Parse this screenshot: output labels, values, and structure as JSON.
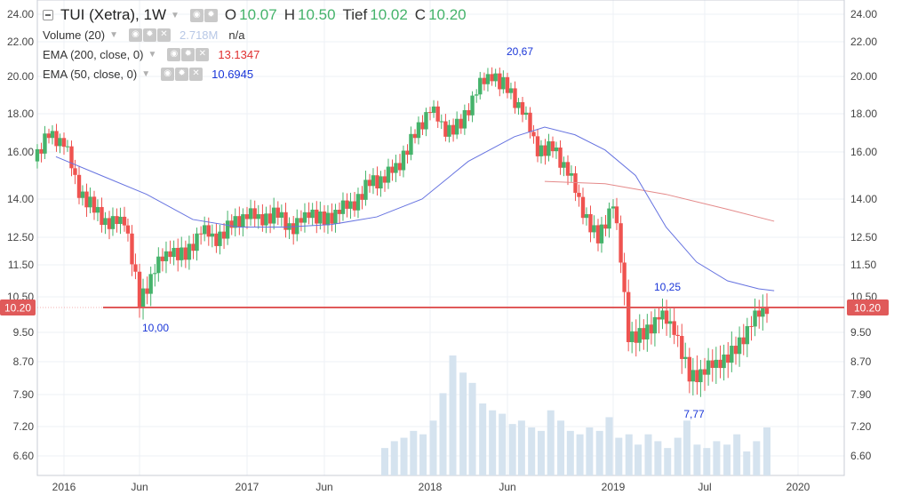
{
  "header": {
    "symbol": "TUI (Xetra), 1W",
    "open_label": "O",
    "open": "10.07",
    "high_label": "H",
    "high": "10.50",
    "low_label": "Tief",
    "low": "10.02",
    "close_label": "C",
    "close": "10.20"
  },
  "indicators": [
    {
      "label": "Volume (20)",
      "value": "2.718M",
      "extra": "n/a",
      "color": "#b8c8e6"
    },
    {
      "label": "EMA (200, close, 0)",
      "value": "13.1347",
      "color": "#e03131"
    },
    {
      "label": "EMA (50, close, 0)",
      "value": "10.6945",
      "color": "#1a36d8"
    }
  ],
  "legend_buttons": [
    "eye-icon",
    "gear-icon",
    "close-icon"
  ],
  "colors": {
    "up": "#45b36b",
    "down": "#ef5350",
    "hline": "#e05a5a",
    "ema50": "#6673e0",
    "ema200": "#e48a8a",
    "volume": "#d5e3ef",
    "annotation": "#1a36d8"
  },
  "chart_data": {
    "type": "candlestick",
    "interval": "1W",
    "y_ticks": [
      "24.00",
      "22.00",
      "20.00",
      "18.00",
      "16.00",
      "14.00",
      "12.50",
      "11.50",
      "10.50",
      "9.50",
      "8.70",
      "7.90",
      "7.20",
      "6.60"
    ],
    "x_ticks": [
      "2016",
      "Jun",
      "2017",
      "Jun",
      "2018",
      "Jun",
      "2019",
      "Jul",
      "2020"
    ],
    "price_label": "10.20",
    "horizontal_line": 10.2,
    "annotations": [
      {
        "text": "20,67",
        "value": 20.67,
        "date": "2018-04"
      },
      {
        "text": "10,00",
        "value": 10.0,
        "date": "2016-06"
      },
      {
        "text": "10,25",
        "value": 10.25,
        "date": "2019-05"
      },
      {
        "text": "7,77",
        "value": 7.77,
        "date": "2019-06"
      }
    ],
    "series": [
      {
        "name": "TUI (Xetra), 1W",
        "kind": "ohlc",
        "path": [
          [
            "2015-11",
            15.6
          ],
          [
            "2015-12",
            16.9
          ],
          [
            "2016-01",
            16.5
          ],
          [
            "2016-02",
            14.3
          ],
          [
            "2016-03",
            13.6
          ],
          [
            "2016-04",
            13.0
          ],
          [
            "2016-05",
            13.2
          ],
          [
            "2016-06",
            10.3
          ],
          [
            "2016-07",
            11.4
          ],
          [
            "2016-08",
            12.0
          ],
          [
            "2016-09",
            11.8
          ],
          [
            "2016-10",
            12.8
          ],
          [
            "2016-11",
            12.4
          ],
          [
            "2016-12",
            13.0
          ],
          [
            "2017-01",
            13.4
          ],
          [
            "2017-02",
            13.2
          ],
          [
            "2017-03",
            13.4
          ],
          [
            "2017-04",
            12.8
          ],
          [
            "2017-05",
            13.5
          ],
          [
            "2017-06",
            13.1
          ],
          [
            "2017-07",
            13.6
          ],
          [
            "2017-08",
            13.8
          ],
          [
            "2017-09",
            14.7
          ],
          [
            "2017-10",
            14.9
          ],
          [
            "2017-11",
            15.5
          ],
          [
            "2017-12",
            16.9
          ],
          [
            "2018-01",
            18.3
          ],
          [
            "2018-02",
            17.1
          ],
          [
            "2018-03",
            17.4
          ],
          [
            "2018-04",
            19.3
          ],
          [
            "2018-05",
            20.1
          ],
          [
            "2018-06",
            19.3
          ],
          [
            "2018-07",
            18.2
          ],
          [
            "2018-08",
            16.1
          ],
          [
            "2018-09",
            16.2
          ],
          [
            "2018-10",
            15.2
          ],
          [
            "2018-11",
            13.5
          ],
          [
            "2018-12",
            12.4
          ],
          [
            "2019-01",
            13.9
          ],
          [
            "2019-02",
            9.4
          ],
          [
            "2019-03",
            9.4
          ],
          [
            "2019-04",
            10.0
          ],
          [
            "2019-05",
            9.6
          ],
          [
            "2019-06",
            8.3
          ],
          [
            "2019-07",
            8.5
          ],
          [
            "2019-08",
            8.7
          ],
          [
            "2019-09",
            9.0
          ],
          [
            "2019-10",
            9.8
          ],
          [
            "2019-11",
            10.2
          ]
        ]
      },
      {
        "name": "EMA (200, close, 0)",
        "kind": "line",
        "points": [
          [
            "2018-08",
            14.75
          ],
          [
            "2018-12",
            14.65
          ],
          [
            "2019-04",
            14.2
          ],
          [
            "2019-08",
            13.6
          ],
          [
            "2019-11",
            13.13
          ]
        ]
      },
      {
        "name": "EMA (50, close, 0)",
        "kind": "line",
        "points": [
          [
            "2015-12",
            15.8
          ],
          [
            "2016-03",
            15.0
          ],
          [
            "2016-06",
            14.2
          ],
          [
            "2016-09",
            13.2
          ],
          [
            "2016-12",
            12.9
          ],
          [
            "2017-03",
            12.9
          ],
          [
            "2017-06",
            13.0
          ],
          [
            "2017-09",
            13.3
          ],
          [
            "2017-12",
            14.0
          ],
          [
            "2018-03",
            15.6
          ],
          [
            "2018-06",
            16.8
          ],
          [
            "2018-08",
            17.3
          ],
          [
            "2018-10",
            16.9
          ],
          [
            "2018-12",
            16.1
          ],
          [
            "2019-02",
            15.0
          ],
          [
            "2019-04",
            12.9
          ],
          [
            "2019-06",
            11.6
          ],
          [
            "2019-08",
            11.0
          ],
          [
            "2019-10",
            10.75
          ],
          [
            "2019-11",
            10.69
          ]
        ]
      },
      {
        "name": "Volume (20)",
        "kind": "bars",
        "values": [
          0.8,
          1.0,
          1.1,
          1.3,
          1.2,
          1.6,
          2.4,
          3.5,
          3.0,
          2.7,
          2.1,
          1.9,
          1.8,
          1.5,
          1.6,
          1.4,
          1.3,
          1.9,
          1.6,
          1.3,
          1.2,
          1.4,
          1.3,
          1.7,
          1.1,
          1.2,
          0.9,
          1.2,
          1.0,
          0.8,
          1.1,
          1.6,
          0.9,
          0.8,
          1.0,
          0.9,
          1.2,
          0.7,
          1.0,
          1.4
        ]
      }
    ]
  }
}
